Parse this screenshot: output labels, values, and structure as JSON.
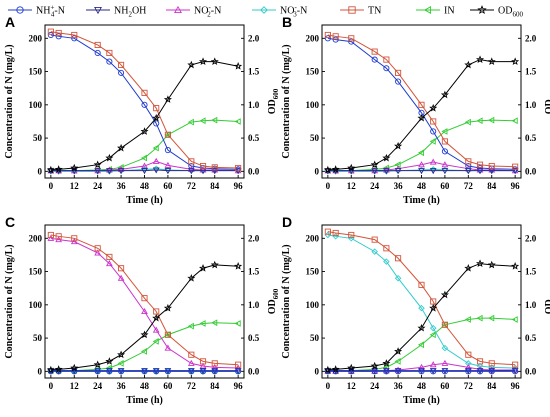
{
  "legend": [
    {
      "label": "NH",
      "sub": "4",
      "sup": "+",
      "tail": "-N",
      "color": "#1f3ccf",
      "marker": "circle"
    },
    {
      "label": "NH",
      "sub": "2",
      "sup": "",
      "tail": "OH",
      "color": "#2a2a8a",
      "marker": "triangle-down"
    },
    {
      "label": "NO",
      "sub": "2",
      "sup": "-",
      "tail": "-N",
      "color": "#cc33cc",
      "marker": "triangle-up"
    },
    {
      "label": "NO",
      "sub": "3",
      "sup": "-",
      "tail": "-N",
      "color": "#33cccc",
      "marker": "diamond"
    },
    {
      "label": "TN",
      "sub": "",
      "sup": "",
      "tail": "",
      "color": "#d2553a",
      "marker": "square"
    },
    {
      "label": "IN",
      "sub": "",
      "sup": "",
      "tail": "",
      "color": "#33cc33",
      "marker": "triangle-left"
    },
    {
      "label": "OD",
      "sub": "600",
      "sup": "",
      "tail": "",
      "color": "#000000",
      "marker": "star"
    }
  ],
  "axis_text": {
    "xlabel": "Time (h)",
    "ylabel": "Concentration of N (mg/L)",
    "y2label_main": "OD",
    "y2label_sub": "600"
  },
  "chart_data": [
    {
      "panel": "A",
      "type": "line",
      "x": [
        0,
        4,
        12,
        24,
        30,
        36,
        48,
        54,
        60,
        72,
        78,
        84,
        96
      ],
      "x_ticks": [
        0,
        12,
        24,
        36,
        48,
        60,
        72,
        84,
        96
      ],
      "xlim": [
        -3,
        99
      ],
      "ylim": [
        -10,
        220
      ],
      "y_ticks": [
        0,
        50,
        100,
        150,
        200
      ],
      "y2lim": [
        -0.1,
        2.2
      ],
      "y2_ticks": [
        "0.0",
        "0.5",
        "1.0",
        "1.5",
        "2.0"
      ],
      "series": [
        {
          "name": "NH4+-N",
          "axis": "left",
          "values": [
            205,
            203,
            200,
            178,
            165,
            148,
            100,
            72,
            32,
            8,
            5,
            4,
            3
          ]
        },
        {
          "name": "NH2OH",
          "axis": "left",
          "values": [
            1,
            1,
            1,
            1,
            1,
            1,
            1,
            2,
            1,
            1,
            1,
            1,
            1
          ]
        },
        {
          "name": "NO2--N",
          "axis": "left",
          "values": [
            1,
            1,
            1,
            1,
            2,
            3,
            8,
            15,
            9,
            3,
            2,
            2,
            1
          ]
        },
        {
          "name": "NO3--N",
          "axis": "left",
          "values": [
            0,
            0,
            0,
            0,
            0,
            1,
            3,
            4,
            2,
            1,
            1,
            1,
            1
          ]
        },
        {
          "name": "TN",
          "axis": "left",
          "values": [
            210,
            208,
            205,
            190,
            178,
            160,
            118,
            95,
            55,
            15,
            8,
            6,
            5
          ]
        },
        {
          "name": "IN",
          "axis": "left",
          "values": [
            1,
            1,
            1,
            2,
            3,
            6,
            20,
            35,
            55,
            74,
            76,
            77,
            75
          ]
        },
        {
          "name": "OD600",
          "axis": "right",
          "values": [
            0.02,
            0.03,
            0.05,
            0.1,
            0.2,
            0.35,
            0.6,
            0.8,
            1.08,
            1.6,
            1.65,
            1.65,
            1.58
          ]
        }
      ]
    },
    {
      "panel": "B",
      "type": "line",
      "x": [
        0,
        4,
        12,
        24,
        30,
        36,
        48,
        54,
        60,
        72,
        78,
        84,
        96
      ],
      "x_ticks": [
        0,
        12,
        24,
        36,
        48,
        60,
        72,
        84,
        96
      ],
      "xlim": [
        -3,
        99
      ],
      "ylim": [
        -10,
        220
      ],
      "y_ticks": [
        0,
        50,
        100,
        150,
        200
      ],
      "y2lim": [
        -0.1,
        2.2
      ],
      "y2_ticks": [
        "0.0",
        "0.5",
        "1.0",
        "1.5",
        "2.0"
      ],
      "series": [
        {
          "name": "NH4+-N",
          "axis": "left",
          "values": [
            200,
            198,
            195,
            168,
            155,
            135,
            88,
            60,
            30,
            8,
            5,
            4,
            3
          ]
        },
        {
          "name": "NH2OH",
          "axis": "left",
          "values": [
            1,
            1,
            1,
            1,
            1,
            1,
            1,
            1,
            1,
            1,
            1,
            1,
            1
          ]
        },
        {
          "name": "NO2--N",
          "axis": "left",
          "values": [
            1,
            1,
            1,
            1,
            2,
            4,
            10,
            14,
            10,
            4,
            2,
            2,
            1
          ]
        },
        {
          "name": "NO3--N",
          "axis": "left",
          "values": [
            0,
            0,
            0,
            0,
            0,
            1,
            2,
            3,
            2,
            1,
            1,
            1,
            1
          ]
        },
        {
          "name": "TN",
          "axis": "left",
          "values": [
            205,
            203,
            200,
            180,
            168,
            148,
            100,
            75,
            45,
            15,
            10,
            8,
            7
          ]
        },
        {
          "name": "IN",
          "axis": "left",
          "values": [
            1,
            1,
            1,
            3,
            5,
            10,
            28,
            45,
            60,
            74,
            76,
            77,
            76
          ]
        },
        {
          "name": "OD600",
          "axis": "right",
          "values": [
            0.02,
            0.03,
            0.05,
            0.1,
            0.2,
            0.38,
            0.8,
            0.95,
            1.15,
            1.6,
            1.68,
            1.65,
            1.65
          ]
        }
      ]
    },
    {
      "panel": "C",
      "type": "line",
      "x": [
        0,
        4,
        12,
        24,
        30,
        36,
        48,
        54,
        60,
        72,
        78,
        84,
        96
      ],
      "x_ticks": [
        0,
        12,
        24,
        36,
        48,
        60,
        72,
        84,
        96
      ],
      "xlim": [
        -3,
        99
      ],
      "ylim": [
        -10,
        220
      ],
      "y_ticks": [
        0,
        50,
        100,
        150,
        200
      ],
      "y2lim": [
        -0.1,
        2.2
      ],
      "y2_ticks": [
        "0.0",
        "0.5",
        "1.0",
        "1.5",
        "2.0"
      ],
      "series": [
        {
          "name": "NH4+-N",
          "axis": "left",
          "values": [
            0,
            0,
            0,
            0,
            0,
            0,
            0,
            0,
            0,
            0,
            0,
            0,
            0
          ]
        },
        {
          "name": "NH2OH",
          "axis": "left",
          "values": [
            1,
            1,
            1,
            1,
            1,
            1,
            1,
            1,
            1,
            1,
            1,
            1,
            1
          ]
        },
        {
          "name": "NO2--N",
          "axis": "left",
          "values": [
            200,
            198,
            195,
            178,
            162,
            140,
            90,
            62,
            35,
            12,
            8,
            6,
            5
          ]
        },
        {
          "name": "NO3--N",
          "axis": "left",
          "values": [
            0,
            0,
            0,
            0,
            0,
            0,
            0,
            0,
            0,
            0,
            0,
            0,
            0
          ]
        },
        {
          "name": "TN",
          "axis": "left",
          "values": [
            205,
            203,
            200,
            185,
            172,
            155,
            110,
            90,
            55,
            25,
            15,
            12,
            10
          ]
        },
        {
          "name": "IN",
          "axis": "left",
          "values": [
            1,
            1,
            1,
            3,
            5,
            12,
            30,
            45,
            55,
            68,
            72,
            73,
            72
          ]
        },
        {
          "name": "OD600",
          "axis": "right",
          "values": [
            0.02,
            0.03,
            0.05,
            0.1,
            0.15,
            0.25,
            0.55,
            0.8,
            0.95,
            1.4,
            1.55,
            1.6,
            1.58
          ]
        }
      ]
    },
    {
      "panel": "D",
      "type": "line",
      "x": [
        0,
        4,
        12,
        24,
        30,
        36,
        48,
        54,
        60,
        72,
        78,
        84,
        96
      ],
      "x_ticks": [
        0,
        12,
        24,
        36,
        48,
        60,
        72,
        84,
        96
      ],
      "xlim": [
        -3,
        99
      ],
      "ylim": [
        -10,
        220
      ],
      "y_ticks": [
        0,
        50,
        100,
        150,
        200
      ],
      "y2lim": [
        -0.1,
        2.2
      ],
      "y2_ticks": [
        "0.0",
        "0.5",
        "1.0",
        "1.5",
        "2.0"
      ],
      "series": [
        {
          "name": "NH4+-N",
          "axis": "left",
          "values": [
            0,
            0,
            0,
            0,
            0,
            0,
            0,
            0,
            0,
            0,
            0,
            0,
            0
          ]
        },
        {
          "name": "NH2OH",
          "axis": "left",
          "values": [
            1,
            1,
            1,
            1,
            1,
            1,
            1,
            1,
            1,
            1,
            1,
            1,
            1
          ]
        },
        {
          "name": "NO2--N",
          "axis": "left",
          "values": [
            0,
            0,
            0,
            0,
            1,
            2,
            6,
            10,
            12,
            6,
            3,
            2,
            2
          ]
        },
        {
          "name": "NO3--N",
          "axis": "left",
          "values": [
            205,
            203,
            200,
            180,
            165,
            140,
            95,
            65,
            35,
            12,
            8,
            6,
            5
          ]
        },
        {
          "name": "TN",
          "axis": "left",
          "values": [
            210,
            208,
            205,
            198,
            185,
            170,
            130,
            105,
            70,
            25,
            15,
            12,
            10
          ]
        },
        {
          "name": "IN",
          "axis": "left",
          "values": [
            1,
            1,
            1,
            3,
            6,
            15,
            40,
            55,
            70,
            78,
            80,
            80,
            78
          ]
        },
        {
          "name": "OD600",
          "axis": "right",
          "values": [
            0.02,
            0.03,
            0.05,
            0.08,
            0.12,
            0.3,
            0.65,
            0.95,
            1.15,
            1.55,
            1.62,
            1.6,
            1.58
          ]
        }
      ]
    }
  ]
}
